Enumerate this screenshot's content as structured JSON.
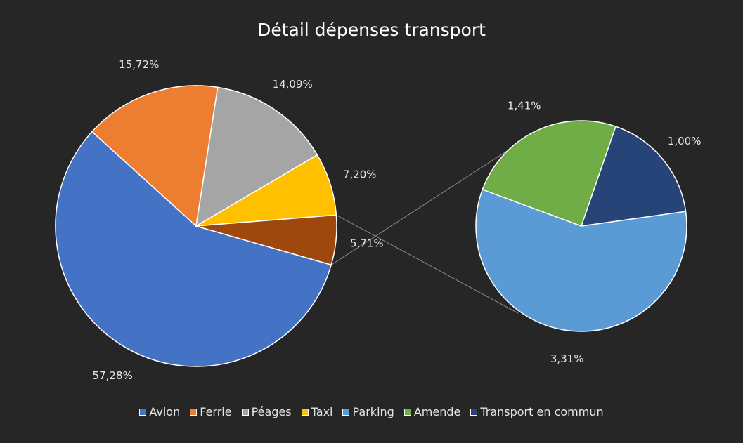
{
  "chart_data": {
    "type": "pie",
    "title": "Détail dépenses transport",
    "slices": [
      {
        "name": "Avion",
        "value": 57.28,
        "label": "57,28%",
        "color": "#4472c4"
      },
      {
        "name": "Ferrie",
        "value": 15.72,
        "label": "15,72%",
        "color": "#ed7d31"
      },
      {
        "name": "Péages",
        "value": 14.09,
        "label": "14,09%",
        "color": "#a5a5a5"
      },
      {
        "name": "Taxi",
        "value": 7.2,
        "label": "7,20%",
        "color": "#ffc000"
      },
      {
        "name": "Parking",
        "value": 3.31,
        "label": "3,31%",
        "color": "#5b9bd5"
      },
      {
        "name": "Amende",
        "value": 1.41,
        "label": "1,41%",
        "color": "#70ad47"
      },
      {
        "name": "Transport en commun",
        "value": 1.0,
        "label": "1,00%",
        "color": "#264478"
      }
    ],
    "aggregate": {
      "label": "5,71%",
      "value": 5.71,
      "color": "#9e480e"
    },
    "secondary_pie_slices": [
      "Parking",
      "Amende",
      "Transport en commun"
    ],
    "legend_position": "bottom"
  }
}
